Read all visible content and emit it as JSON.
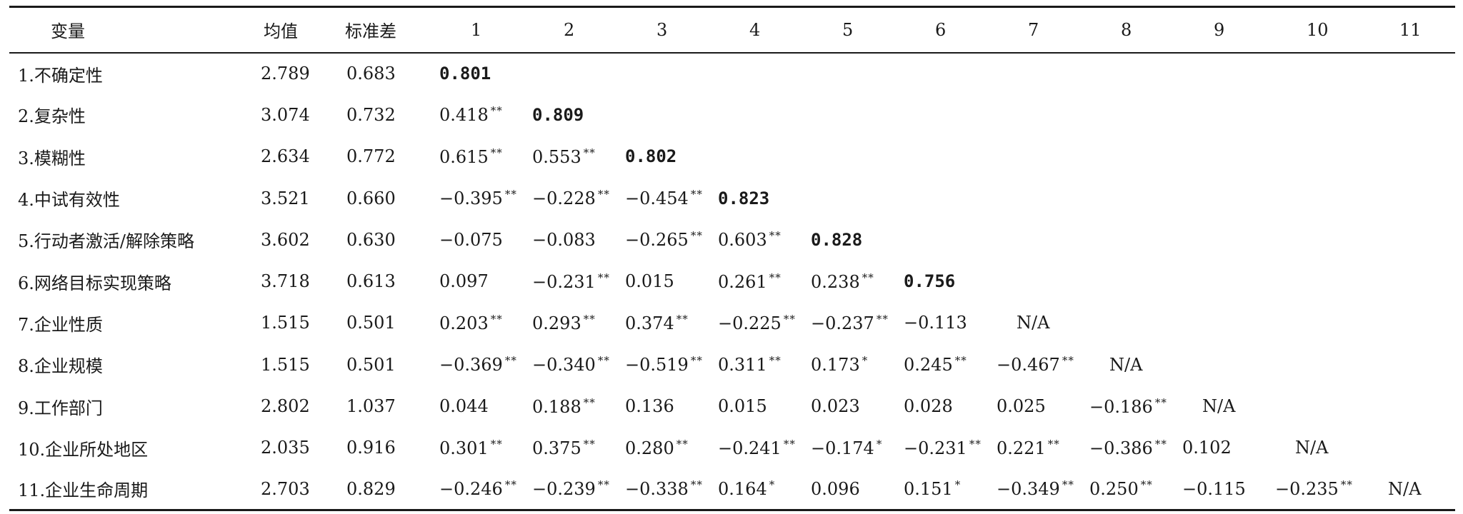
{
  "table": {
    "headers": [
      "变量",
      "均值",
      "标准差",
      "1",
      "2",
      "3",
      "4",
      "5",
      "6",
      "7",
      "8",
      "9",
      "10",
      "11"
    ],
    "rows": [
      {
        "var": "1.不确定性",
        "mean": "2.789",
        "sd": "0.683",
        "cells": [
          {
            "v": "0.801",
            "s": "",
            "diag": true
          },
          {
            "v": "",
            "s": ""
          },
          {
            "v": "",
            "s": ""
          },
          {
            "v": "",
            "s": ""
          },
          {
            "v": "",
            "s": ""
          },
          {
            "v": "",
            "s": ""
          },
          {
            "v": "",
            "s": ""
          },
          {
            "v": "",
            "s": ""
          },
          {
            "v": "",
            "s": ""
          },
          {
            "v": "",
            "s": ""
          },
          {
            "v": "",
            "s": ""
          }
        ]
      },
      {
        "var": "2.复杂性",
        "mean": "3.074",
        "sd": "0.732",
        "cells": [
          {
            "v": "0.418",
            "s": "**"
          },
          {
            "v": "0.809",
            "s": "",
            "diag": true
          },
          {
            "v": "",
            "s": ""
          },
          {
            "v": "",
            "s": ""
          },
          {
            "v": "",
            "s": ""
          },
          {
            "v": "",
            "s": ""
          },
          {
            "v": "",
            "s": ""
          },
          {
            "v": "",
            "s": ""
          },
          {
            "v": "",
            "s": ""
          },
          {
            "v": "",
            "s": ""
          },
          {
            "v": "",
            "s": ""
          }
        ]
      },
      {
        "var": "3.模糊性",
        "mean": "2.634",
        "sd": "0.772",
        "cells": [
          {
            "v": "0.615",
            "s": "**"
          },
          {
            "v": "0.553",
            "s": "**"
          },
          {
            "v": "0.802",
            "s": "",
            "diag": true
          },
          {
            "v": "",
            "s": ""
          },
          {
            "v": "",
            "s": ""
          },
          {
            "v": "",
            "s": ""
          },
          {
            "v": "",
            "s": ""
          },
          {
            "v": "",
            "s": ""
          },
          {
            "v": "",
            "s": ""
          },
          {
            "v": "",
            "s": ""
          },
          {
            "v": "",
            "s": ""
          }
        ]
      },
      {
        "var": "4.中试有效性",
        "mean": "3.521",
        "sd": "0.660",
        "cells": [
          {
            "v": "−0.395",
            "s": "**"
          },
          {
            "v": "−0.228",
            "s": "**"
          },
          {
            "v": "−0.454",
            "s": "**"
          },
          {
            "v": "0.823",
            "s": "",
            "diag": true
          },
          {
            "v": "",
            "s": ""
          },
          {
            "v": "",
            "s": ""
          },
          {
            "v": "",
            "s": ""
          },
          {
            "v": "",
            "s": ""
          },
          {
            "v": "",
            "s": ""
          },
          {
            "v": "",
            "s": ""
          },
          {
            "v": "",
            "s": ""
          }
        ]
      },
      {
        "var": "5.行动者激活/解除策略",
        "mean": "3.602",
        "sd": "0.630",
        "cells": [
          {
            "v": "−0.075",
            "s": ""
          },
          {
            "v": "−0.083",
            "s": ""
          },
          {
            "v": "−0.265",
            "s": "**"
          },
          {
            "v": "0.603",
            "s": "**"
          },
          {
            "v": "0.828",
            "s": "",
            "diag": true
          },
          {
            "v": "",
            "s": ""
          },
          {
            "v": "",
            "s": ""
          },
          {
            "v": "",
            "s": ""
          },
          {
            "v": "",
            "s": ""
          },
          {
            "v": "",
            "s": ""
          },
          {
            "v": "",
            "s": ""
          }
        ]
      },
      {
        "var": "6.网络目标实现策略",
        "mean": "3.718",
        "sd": "0.613",
        "cells": [
          {
            "v": "0.097",
            "s": ""
          },
          {
            "v": "−0.231",
            "s": "**"
          },
          {
            "v": "0.015",
            "s": ""
          },
          {
            "v": "0.261",
            "s": "**"
          },
          {
            "v": "0.238",
            "s": "**"
          },
          {
            "v": "0.756",
            "s": "",
            "diag": true
          },
          {
            "v": "",
            "s": ""
          },
          {
            "v": "",
            "s": ""
          },
          {
            "v": "",
            "s": ""
          },
          {
            "v": "",
            "s": ""
          },
          {
            "v": "",
            "s": ""
          }
        ]
      },
      {
        "var": "7.企业性质",
        "mean": "1.515",
        "sd": "0.501",
        "cells": [
          {
            "v": "0.203",
            "s": "**"
          },
          {
            "v": "0.293",
            "s": "**"
          },
          {
            "v": "0.374",
            "s": "**"
          },
          {
            "v": "−0.225",
            "s": "**"
          },
          {
            "v": "−0.237",
            "s": "**"
          },
          {
            "v": "−0.113",
            "s": ""
          },
          {
            "v": "N/A",
            "s": "",
            "na": true
          },
          {
            "v": "",
            "s": ""
          },
          {
            "v": "",
            "s": ""
          },
          {
            "v": "",
            "s": ""
          },
          {
            "v": "",
            "s": ""
          }
        ]
      },
      {
        "var": "8.企业规模",
        "mean": "1.515",
        "sd": "0.501",
        "cells": [
          {
            "v": "−0.369",
            "s": "**"
          },
          {
            "v": "−0.340",
            "s": "**"
          },
          {
            "v": "−0.519",
            "s": "**"
          },
          {
            "v": "0.311",
            "s": "**"
          },
          {
            "v": "0.173",
            "s": "*"
          },
          {
            "v": "0.245",
            "s": "**"
          },
          {
            "v": "−0.467",
            "s": "**"
          },
          {
            "v": "N/A",
            "s": "",
            "na": true
          },
          {
            "v": "",
            "s": ""
          },
          {
            "v": "",
            "s": ""
          },
          {
            "v": "",
            "s": ""
          }
        ]
      },
      {
        "var": "9.工作部门",
        "mean": "2.802",
        "sd": "1.037",
        "cells": [
          {
            "v": "0.044",
            "s": ""
          },
          {
            "v": "0.188",
            "s": "**"
          },
          {
            "v": "0.136",
            "s": ""
          },
          {
            "v": "0.015",
            "s": ""
          },
          {
            "v": "0.023",
            "s": ""
          },
          {
            "v": "0.028",
            "s": ""
          },
          {
            "v": "0.025",
            "s": ""
          },
          {
            "v": "−0.186",
            "s": "**"
          },
          {
            "v": "N/A",
            "s": "",
            "na": true
          },
          {
            "v": "",
            "s": ""
          },
          {
            "v": "",
            "s": ""
          }
        ]
      },
      {
        "var": "10.企业所处地区",
        "mean": "2.035",
        "sd": "0.916",
        "cells": [
          {
            "v": "0.301",
            "s": "**"
          },
          {
            "v": "0.375",
            "s": "**"
          },
          {
            "v": "0.280",
            "s": "**"
          },
          {
            "v": "−0.241",
            "s": "**"
          },
          {
            "v": "−0.174",
            "s": "*"
          },
          {
            "v": "−0.231",
            "s": "**"
          },
          {
            "v": "0.221",
            "s": "**"
          },
          {
            "v": "−0.386",
            "s": "**"
          },
          {
            "v": "0.102",
            "s": ""
          },
          {
            "v": "N/A",
            "s": "",
            "na": true
          },
          {
            "v": "",
            "s": ""
          }
        ]
      },
      {
        "var": "11.企业生命周期",
        "mean": "2.703",
        "sd": "0.829",
        "cells": [
          {
            "v": "−0.246",
            "s": "**"
          },
          {
            "v": "−0.239",
            "s": "**"
          },
          {
            "v": "−0.338",
            "s": "**"
          },
          {
            "v": "0.164",
            "s": "*"
          },
          {
            "v": "0.096",
            "s": ""
          },
          {
            "v": "0.151",
            "s": "*"
          },
          {
            "v": "−0.349",
            "s": "**"
          },
          {
            "v": "0.250",
            "s": "**"
          },
          {
            "v": "−0.115",
            "s": ""
          },
          {
            "v": "−0.235",
            "s": "**"
          },
          {
            "v": "N/A",
            "s": "",
            "na": true
          }
        ]
      }
    ]
  }
}
